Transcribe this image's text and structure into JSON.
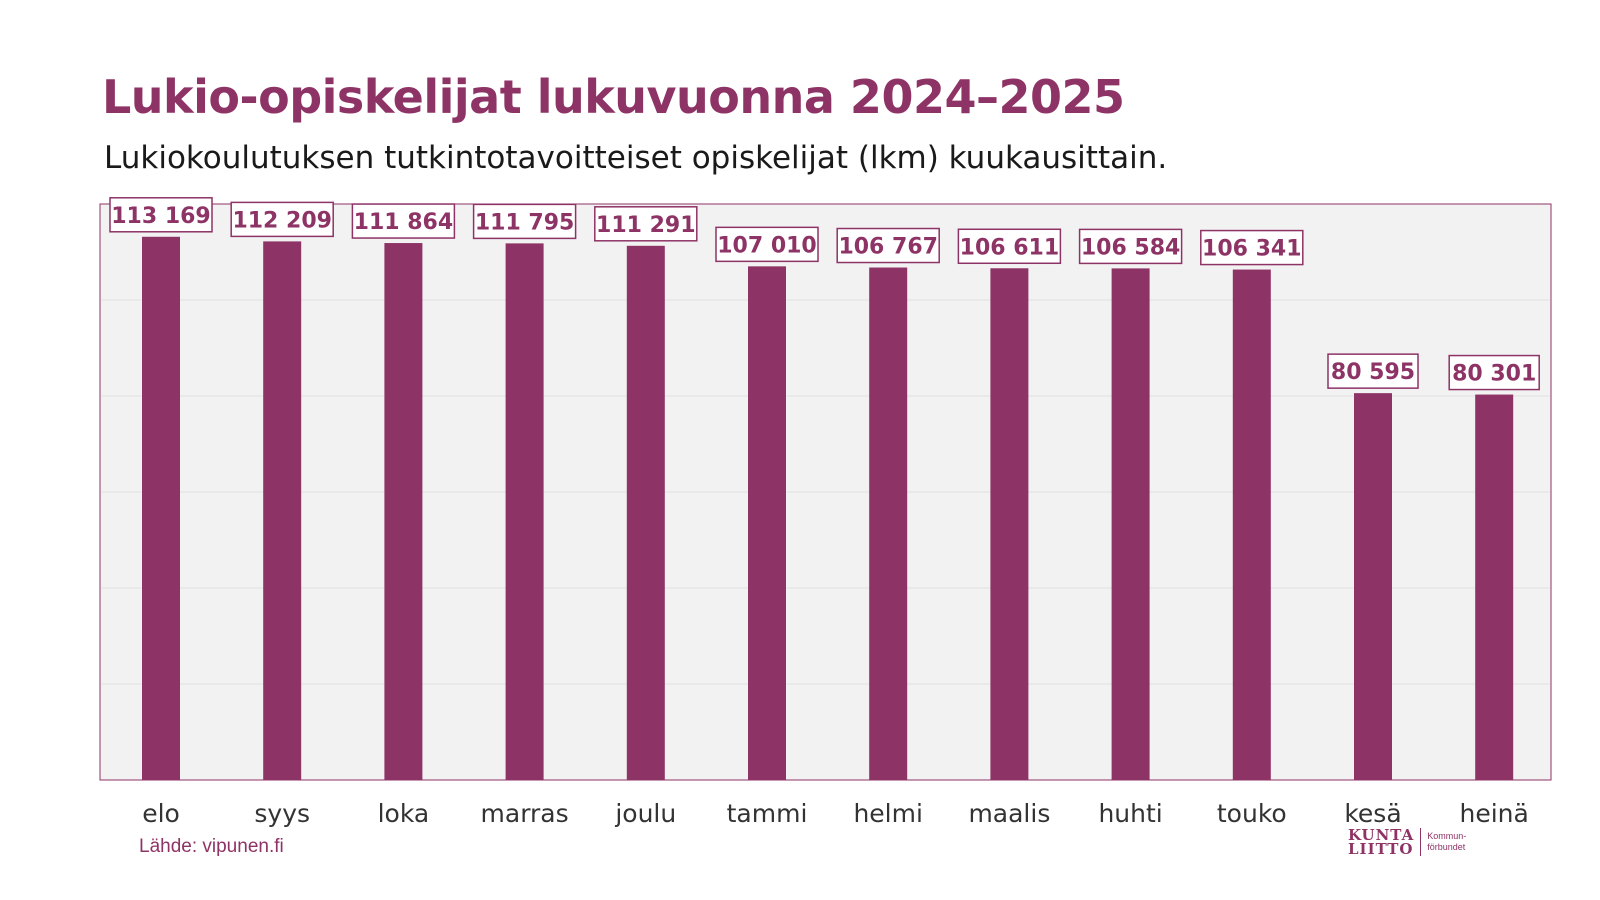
{
  "header": {
    "title": "Lukio-opiskelijat lukuvuonna 2024–2025",
    "subtitle": "Lukiokoulutuksen tutkintotavoitteiset opiskelijat (lkm) kuukausittain."
  },
  "footer": {
    "source": "Lähde: vipunen.fi",
    "logo_line1": "KUNTA",
    "logo_line2": "LIITTO",
    "logo_sub1": "Kommun-",
    "logo_sub2": "förbundet"
  },
  "colors": {
    "accent": "#8e3365",
    "plot_background": "#f2f2f2",
    "gridline": "#e0e0e0"
  },
  "chart_data": {
    "type": "bar",
    "title": "Lukio-opiskelijat lukuvuonna 2024–2025",
    "subtitle": "Lukiokoulutuksen tutkintotavoitteiset opiskelijat (lkm) kuukausittain.",
    "xlabel": "",
    "ylabel": "",
    "categories": [
      "elo",
      "syys",
      "loka",
      "marras",
      "joulu",
      "tammi",
      "helmi",
      "maalis",
      "huhti",
      "touko",
      "kesä",
      "heinä"
    ],
    "values": [
      113169,
      112209,
      111864,
      111795,
      111291,
      107010,
      106767,
      106611,
      106584,
      106341,
      80595,
      80301
    ],
    "value_labels": [
      "113 169",
      "112 209",
      "111 864",
      "111 795",
      "111 291",
      "107 010",
      "106 767",
      "106 611",
      "106 584",
      "106 341",
      "80 595",
      "80 301"
    ],
    "ylim": [
      0,
      120000
    ],
    "gridlines": [
      20000,
      40000,
      60000,
      80000,
      100000
    ],
    "grid": true,
    "legend": false
  }
}
